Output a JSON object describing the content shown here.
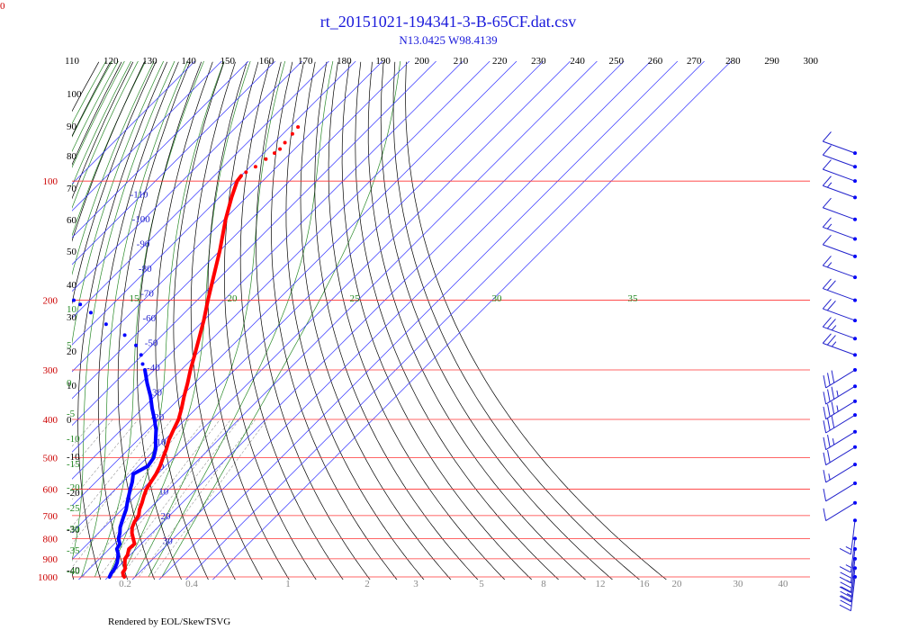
{
  "chart": {
    "title": "rt_20151021-194341-3-B-65CF.dat.csv",
    "subtitle": "N13.0425 W98.4139",
    "footer": "Rendered by EOL/SkewTSVG",
    "corner_label": "0"
  },
  "chart_data": {
    "type": "line",
    "title": "rt_20151021-194341-3-B-65CF.dat.csv",
    "subtitle": "N13.0425 W98.4139",
    "theta_axis_labels": [
      "110",
      "120",
      "130",
      "140",
      "150",
      "160",
      "170",
      "180",
      "190",
      "200",
      "210",
      "220",
      "230",
      "240",
      "250",
      "260",
      "270",
      "280",
      "290",
      "300"
    ],
    "pressure_labels": [
      "100",
      "200",
      "300",
      "400",
      "500",
      "600",
      "700",
      "800",
      "900",
      "1000"
    ],
    "pressure_levels": [
      100,
      200,
      300,
      400,
      500,
      600,
      700,
      800,
      900,
      1000
    ],
    "isotherm_labels": [
      {
        "text": "-110",
        "t": -110
      },
      {
        "text": "-100",
        "t": -100
      },
      {
        "text": "-90",
        "t": -90
      },
      {
        "text": "-80",
        "t": -80
      },
      {
        "text": "-70",
        "t": -70
      },
      {
        "text": "-60",
        "t": -60
      },
      {
        "text": "-50",
        "t": -50
      },
      {
        "text": "-40",
        "t": -40
      },
      {
        "text": "-30",
        "t": -30
      },
      {
        "text": "-20",
        "t": -20
      },
      {
        "text": "-10",
        "t": -10
      },
      {
        "text": "0",
        "t": 0
      },
      {
        "text": "10",
        "t": 10
      },
      {
        "text": "20",
        "t": 20
      },
      {
        "text": "30",
        "t": 30
      }
    ],
    "left_dry_labels": [
      "100",
      "90",
      "80",
      "70",
      "60",
      "50",
      "40",
      "30",
      "20",
      "10",
      "0",
      "-10",
      "-20",
      "-30",
      "-40"
    ],
    "left_wet_labels": [
      "10",
      "5",
      "0",
      "-5",
      "-10",
      "-15",
      "-20",
      "-25",
      "-30",
      "-35",
      "-40"
    ],
    "wet_top_labels": [
      "15",
      "20",
      "25",
      "30",
      "35"
    ],
    "mixing_ratio_labels": [
      "0.2",
      "0.4",
      "1",
      "2",
      "3",
      "5",
      "8",
      "12",
      "16",
      "20",
      "30",
      "40"
    ],
    "series": [
      {
        "role": "temperature",
        "color": "#ff0000",
        "points": [
          [
            1000,
            26.0
          ],
          [
            990,
            25.0
          ],
          [
            975,
            23.8
          ],
          [
            960,
            23.5
          ],
          [
            950,
            23.0
          ],
          [
            925,
            21.2
          ],
          [
            900,
            19.5
          ],
          [
            880,
            19.0
          ],
          [
            850,
            17.3
          ],
          [
            825,
            17.5
          ],
          [
            800,
            15.0
          ],
          [
            775,
            12.5
          ],
          [
            750,
            10.5
          ],
          [
            725,
            9.2
          ],
          [
            700,
            8.5
          ],
          [
            675,
            6.5
          ],
          [
            650,
            5.0
          ],
          [
            625,
            3.2
          ],
          [
            600,
            1.5
          ],
          [
            575,
            0.5
          ],
          [
            550,
            -0.5
          ],
          [
            525,
            -2.0
          ],
          [
            500,
            -4.0
          ],
          [
            475,
            -6.0
          ],
          [
            450,
            -8.5
          ],
          [
            425,
            -10.5
          ],
          [
            400,
            -12.5
          ],
          [
            375,
            -15.5
          ],
          [
            350,
            -19.0
          ],
          [
            325,
            -22.5
          ],
          [
            300,
            -26.5
          ],
          [
            275,
            -30.5
          ],
          [
            250,
            -35.0
          ],
          [
            225,
            -40.0
          ],
          [
            200,
            -46.0
          ],
          [
            175,
            -52.5
          ],
          [
            150,
            -60.0
          ],
          [
            125,
            -69.5
          ],
          [
            110,
            -75.5
          ],
          [
            100,
            -79.5
          ],
          [
            97,
            -80.0
          ]
        ]
      },
      {
        "role": "temperature-upper",
        "color": "#ff0000",
        "dotted": true,
        "points": [
          [
            95,
            -79.5
          ],
          [
            92,
            -78.0
          ],
          [
            88,
            -77.0
          ],
          [
            85,
            -76.0
          ],
          [
            83,
            -75.5
          ],
          [
            80,
            -76.0
          ],
          [
            76,
            -76.5
          ],
          [
            73,
            -77.0
          ]
        ]
      },
      {
        "role": "dewpoint",
        "color": "#0000ff",
        "points": [
          [
            1000,
            20.5
          ],
          [
            980,
            19.8
          ],
          [
            960,
            19.5
          ],
          [
            940,
            18.8
          ],
          [
            920,
            18.0
          ],
          [
            900,
            16.8
          ],
          [
            875,
            15.2
          ],
          [
            850,
            12.8
          ],
          [
            825,
            12.0
          ],
          [
            800,
            9.5
          ],
          [
            775,
            8.0
          ],
          [
            750,
            6.0
          ],
          [
            725,
            4.5
          ],
          [
            700,
            3.0
          ],
          [
            675,
            1.5
          ],
          [
            650,
            -0.5
          ],
          [
            625,
            -2.5
          ],
          [
            600,
            -4.5
          ],
          [
            575,
            -6.5
          ],
          [
            550,
            -9.0
          ],
          [
            525,
            -6.5
          ],
          [
            500,
            -7.5
          ],
          [
            475,
            -10.0
          ],
          [
            450,
            -13.5
          ],
          [
            425,
            -17.0
          ],
          [
            400,
            -21.5
          ],
          [
            375,
            -26.5
          ],
          [
            350,
            -31.5
          ],
          [
            325,
            -37.5
          ],
          [
            300,
            -43.5
          ]
        ]
      },
      {
        "role": "dewpoint-upper",
        "color": "#0000ff",
        "dotted": true,
        "points": [
          [
            290,
            -46.5
          ],
          [
            275,
            -50.5
          ],
          [
            260,
            -56.0
          ],
          [
            245,
            -64.0
          ],
          [
            230,
            -75.0
          ],
          [
            215,
            -85.0
          ],
          [
            205,
            -92.0
          ],
          [
            200,
            -96.0
          ]
        ]
      }
    ],
    "wind_barbs": [
      {
        "p": 85,
        "speed": 10
      },
      {
        "p": 92,
        "speed": 10
      },
      {
        "p": 100,
        "speed": 10
      },
      {
        "p": 110,
        "speed": 15
      },
      {
        "p": 125,
        "speed": 10
      },
      {
        "p": 140,
        "speed": 15
      },
      {
        "p": 155,
        "speed": 10
      },
      {
        "p": 175,
        "speed": 15
      },
      {
        "p": 200,
        "speed": 20
      },
      {
        "p": 225,
        "speed": 20
      },
      {
        "p": 250,
        "speed": 25
      },
      {
        "p": 275,
        "speed": 25
      },
      {
        "p": 300,
        "speed": 30
      },
      {
        "p": 330,
        "speed": 35
      },
      {
        "p": 360,
        "speed": 35
      },
      {
        "p": 390,
        "speed": 30
      },
      {
        "p": 430,
        "speed": 25
      },
      {
        "p": 470,
        "speed": 20
      },
      {
        "p": 520,
        "speed": 15
      },
      {
        "p": 580,
        "speed": 10
      },
      {
        "p": 650,
        "speed": 10
      },
      {
        "p": 720,
        "speed": 15
      },
      {
        "p": 800,
        "speed": 15
      },
      {
        "p": 850,
        "speed": 20
      },
      {
        "p": 900,
        "speed": 25
      },
      {
        "p": 950,
        "speed": 30
      },
      {
        "p": 1000,
        "speed": 35
      }
    ],
    "colors": {
      "isobar": "#ff3333",
      "isotherm": "#3333ff",
      "dry_adiabat": "#000000",
      "moist_adiabat": "#2a8a2a",
      "mixing_ratio": "#999999",
      "temperature": "#ff0000",
      "dewpoint": "#0000ff"
    },
    "xlabel": "",
    "ylabel": "",
    "grid": true
  }
}
